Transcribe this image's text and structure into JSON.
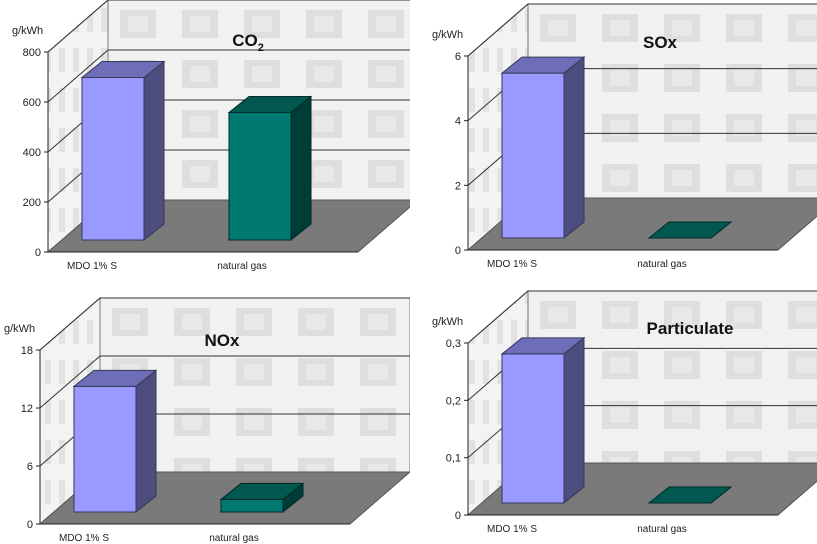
{
  "chart_data": [
    {
      "type": "bar",
      "title": "CO",
      "title_sub": "2",
      "ylabel": "g/kWh",
      "categories": [
        "MDO 1% S",
        "natural gas"
      ],
      "values": [
        650,
        510
      ],
      "ylim": [
        0,
        800
      ],
      "yticks": [
        "0",
        "200",
        "400",
        "600",
        "800"
      ],
      "colors": [
        "#9999ff",
        "#007a70"
      ],
      "grid": true
    },
    {
      "type": "bar",
      "title": "SOx",
      "ylabel": "g/kWh",
      "categories": [
        "MDO 1% S",
        "natural gas"
      ],
      "values": [
        5.1,
        0
      ],
      "ylim": [
        0,
        6
      ],
      "yticks": [
        "0",
        "2",
        "4",
        "6"
      ],
      "colors": [
        "#9999ff",
        "#007a70"
      ],
      "grid": true
    },
    {
      "type": "bar",
      "title": "NOx",
      "ylabel": "g/kWh",
      "categories": [
        "MDO 1% S",
        "natural gas"
      ],
      "values": [
        13,
        1.3
      ],
      "ylim": [
        0,
        18
      ],
      "yticks": [
        "0",
        "6",
        "12",
        "18"
      ],
      "colors": [
        "#9999ff",
        "#007a70"
      ],
      "grid": true
    },
    {
      "type": "bar",
      "title": "Particulate",
      "ylabel": "g/kWh",
      "categories": [
        "MDO 1% S",
        "natural gas"
      ],
      "values": [
        0.26,
        0
      ],
      "ylim": [
        0,
        0.3
      ],
      "yticks": [
        "0",
        "0,1",
        "0,2",
        "0,3"
      ],
      "colors": [
        "#9999ff",
        "#007a70"
      ],
      "grid": true
    }
  ]
}
